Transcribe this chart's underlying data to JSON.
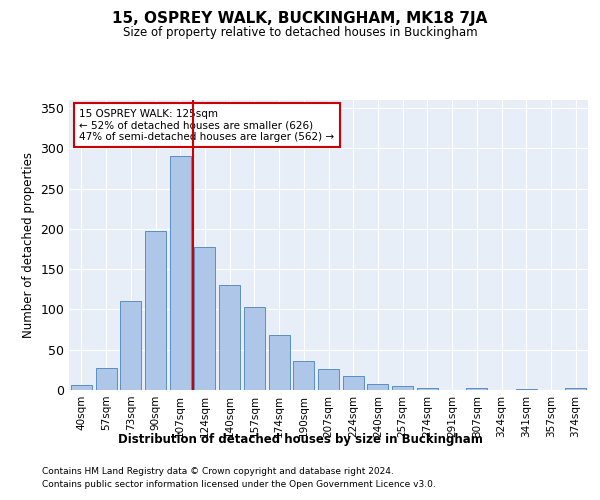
{
  "title": "15, OSPREY WALK, BUCKINGHAM, MK18 7JA",
  "subtitle": "Size of property relative to detached houses in Buckingham",
  "xlabel": "Distribution of detached houses by size in Buckingham",
  "ylabel": "Number of detached properties",
  "categories": [
    "40sqm",
    "57sqm",
    "73sqm",
    "90sqm",
    "107sqm",
    "124sqm",
    "140sqm",
    "157sqm",
    "174sqm",
    "190sqm",
    "207sqm",
    "224sqm",
    "240sqm",
    "257sqm",
    "274sqm",
    "291sqm",
    "307sqm",
    "324sqm",
    "341sqm",
    "357sqm",
    "374sqm"
  ],
  "values": [
    6,
    27,
    110,
    198,
    290,
    178,
    130,
    103,
    68,
    36,
    26,
    17,
    8,
    5,
    3,
    0,
    2,
    0,
    1,
    0,
    2
  ],
  "bar_color": "#aec6e8",
  "bar_edge_color": "#5a8fc2",
  "vline_x_index": 4.5,
  "vline_color": "#cc0000",
  "annotation_text": "15 OSPREY WALK: 125sqm\n← 52% of detached houses are smaller (626)\n47% of semi-detached houses are larger (562) →",
  "annotation_box_color": "#ffffff",
  "annotation_box_edge_color": "#cc0000",
  "ylim": [
    0,
    360
  ],
  "yticks": [
    0,
    50,
    100,
    150,
    200,
    250,
    300,
    350
  ],
  "footnote1": "Contains HM Land Registry data © Crown copyright and database right 2024.",
  "footnote2": "Contains public sector information licensed under the Open Government Licence v3.0.",
  "bg_color": "#e8eef7",
  "fig_bg_color": "#ffffff"
}
